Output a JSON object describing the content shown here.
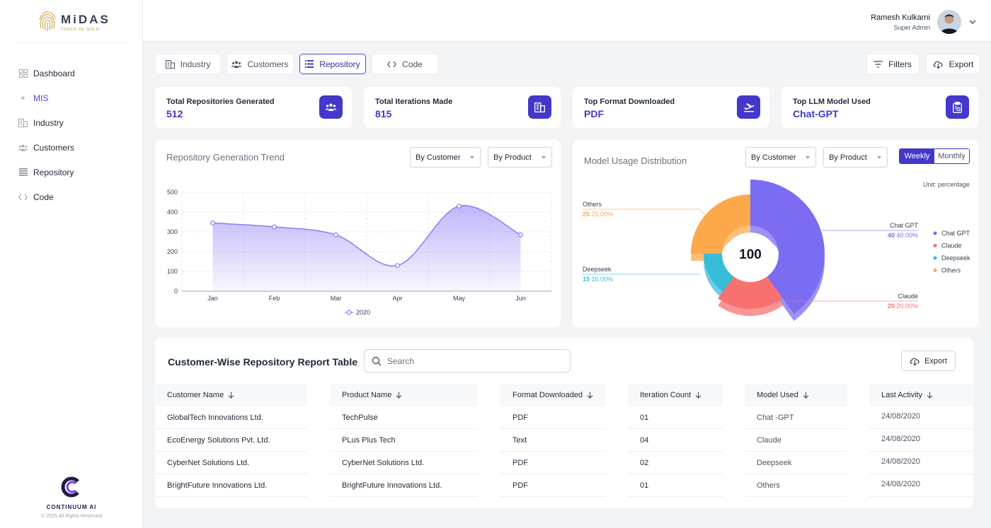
{
  "brand": {
    "name": "MiDAS",
    "tagline": "TOUCH OF GOLD"
  },
  "sidebar": {
    "items": [
      {
        "label": "Dashboard",
        "icon": "grid-icon",
        "active": false
      },
      {
        "label": "MIS",
        "icon": "dot-icon",
        "active": true
      },
      {
        "label": "Industry",
        "icon": "building-icon",
        "active": false
      },
      {
        "label": "Customers",
        "icon": "users-icon",
        "active": false
      },
      {
        "label": "Repository",
        "icon": "list-icon",
        "active": false
      },
      {
        "label": "Code",
        "icon": "code-icon",
        "active": false
      }
    ],
    "footer": {
      "company": "CONTINUUM AI",
      "copyright": "© 2025 All Rights Reserved"
    }
  },
  "header": {
    "user_name": "Ramesh Kulkarni",
    "user_role": "Super Admin"
  },
  "tabs": [
    {
      "label": "Industry",
      "icon": "building-icon"
    },
    {
      "label": "Customers",
      "icon": "users-icon"
    },
    {
      "label": "Repository",
      "icon": "list-icon",
      "active": true
    },
    {
      "label": "Code",
      "icon": "code-icon"
    }
  ],
  "actions": {
    "filters": "Filters",
    "export": "Export"
  },
  "stats": [
    {
      "label": "Total Repositories Generated",
      "value": "512",
      "icon": "users-icon"
    },
    {
      "label": "Total Iterations Made",
      "value": "815",
      "icon": "building-icon"
    },
    {
      "label": "Top Format Downloaded",
      "value": "PDF",
      "icon": "plane-icon"
    },
    {
      "label": "Top LLM Model Used",
      "value": "Chat-GPT",
      "icon": "clipboard-icon"
    }
  ],
  "trend": {
    "title": "Repository Generation Trend",
    "filter_customer": "By Customer",
    "filter_product": "By Product"
  },
  "usage": {
    "title": "Model Usage Distribution",
    "filter_customer": "By Customer",
    "filter_product": "By Product",
    "toggle_weekly": "Weekly",
    "toggle_monthly": "Monthly",
    "unit": "Unit: percentage"
  },
  "chart_data": [
    {
      "type": "area",
      "title": "Repository Generation Trend",
      "categories": [
        "Jan",
        "Feb",
        "Mar",
        "Apr",
        "May",
        "Jun"
      ],
      "series": [
        {
          "name": "2020",
          "values": [
            345,
            325,
            285,
            130,
            430,
            285
          ]
        }
      ],
      "yticks": [
        "0",
        "100",
        "200",
        "300",
        "400",
        "500"
      ],
      "ylim": [
        0,
        500
      ],
      "grid": true,
      "legend": "bottom",
      "color": "#8b7cf6"
    },
    {
      "type": "pie",
      "title": "Model Usage Distribution",
      "center_label": "100",
      "slices": [
        {
          "name": "Chat GPT",
          "value": 40,
          "percent": "40.00%",
          "color": "#7c6cf2"
        },
        {
          "name": "Claude",
          "value": 20,
          "percent": "20.00%",
          "color": "#f87171"
        },
        {
          "name": "Deepseek",
          "value": 15,
          "percent": "15.00%",
          "color": "#38bdd8"
        },
        {
          "name": "Others",
          "value": 25,
          "percent": "25.00%",
          "color": "#fba94a"
        }
      ],
      "legend": "right"
    }
  ],
  "table": {
    "title": "Customer-Wise Repository Report Table",
    "search_placeholder": "Search",
    "export": "Export",
    "columns": [
      "Customer Name",
      "Product Name",
      "Format Downloaded",
      "Iteration Count",
      "Model Used",
      "Last Activity"
    ],
    "rows": [
      [
        "GlobalTech Innovations Ltd.",
        "TechPulse",
        "PDF",
        "01",
        "Chat -GPT",
        "24/08/2020"
      ],
      [
        "EcoEnergy Solutions Pvt. Ltd.",
        "PLus Plus Tech",
        "Text",
        "04",
        "Claude",
        "24/08/2020"
      ],
      [
        "CyberNet Solutions Ltd.",
        "CyberNet Solutions Ltd.",
        "PDF",
        "02",
        "Deepseek",
        "24/08/2020"
      ],
      [
        "BrightFuture Innovations Ltd.",
        "BrightFuture Innovations Ltd.",
        "PDF",
        "01",
        "Others",
        "24/08/2020"
      ]
    ]
  }
}
